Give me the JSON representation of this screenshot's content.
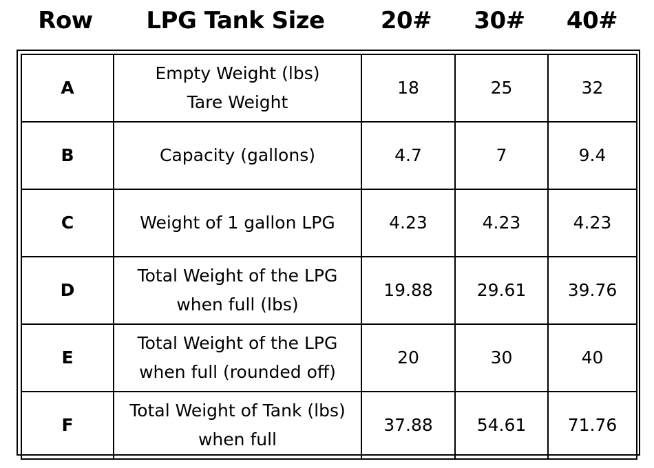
{
  "header": {
    "row_label": "Row",
    "size_label": "LPG Tank Size",
    "sizes": [
      "20#",
      "30#",
      "40#"
    ]
  },
  "rows": [
    {
      "id": "A",
      "desc_line1": "Empty Weight (lbs)",
      "desc_line2": "Tare Weight",
      "values": [
        "18",
        "25",
        "32"
      ]
    },
    {
      "id": "B",
      "desc_line1": "Capacity (gallons)",
      "desc_line2": "",
      "values": [
        "4.7",
        "7",
        "9.4"
      ]
    },
    {
      "id": "C",
      "desc_line1": "Weight of 1 gallon LPG",
      "desc_line2": "",
      "values": [
        "4.23",
        "4.23",
        "4.23"
      ]
    },
    {
      "id": "D",
      "desc_line1": "Total Weight of the LPG",
      "desc_line2": "when full (lbs)",
      "values": [
        "19.88",
        "29.61",
        "39.76"
      ]
    },
    {
      "id": "E",
      "desc_line1": "Total Weight of the LPG",
      "desc_line2": "when full (rounded off)",
      "values": [
        "20",
        "30",
        "40"
      ]
    },
    {
      "id": "F",
      "desc_line1": "Total Weight of Tank (lbs)",
      "desc_line2": "when full",
      "values": [
        "37.88",
        "54.61",
        "71.76"
      ]
    }
  ]
}
